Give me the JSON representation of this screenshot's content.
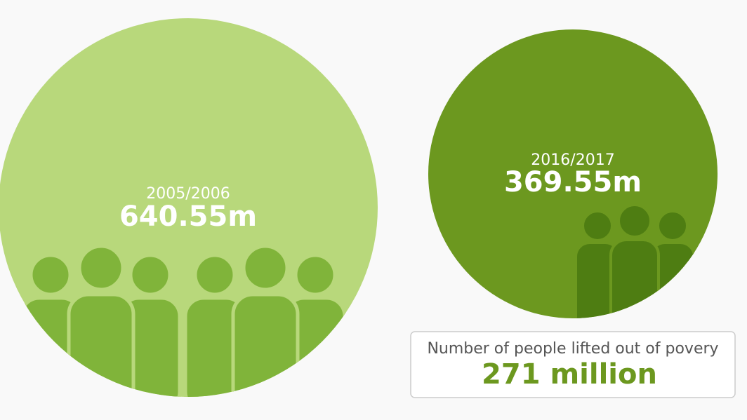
{
  "left": {
    "period": "2005/2006",
    "value": "640.55m"
  },
  "right": {
    "period": "2016/2017",
    "value": "369.55m"
  },
  "summary": {
    "label": "Number of people lifted out of povery",
    "value": "271 million"
  }
}
